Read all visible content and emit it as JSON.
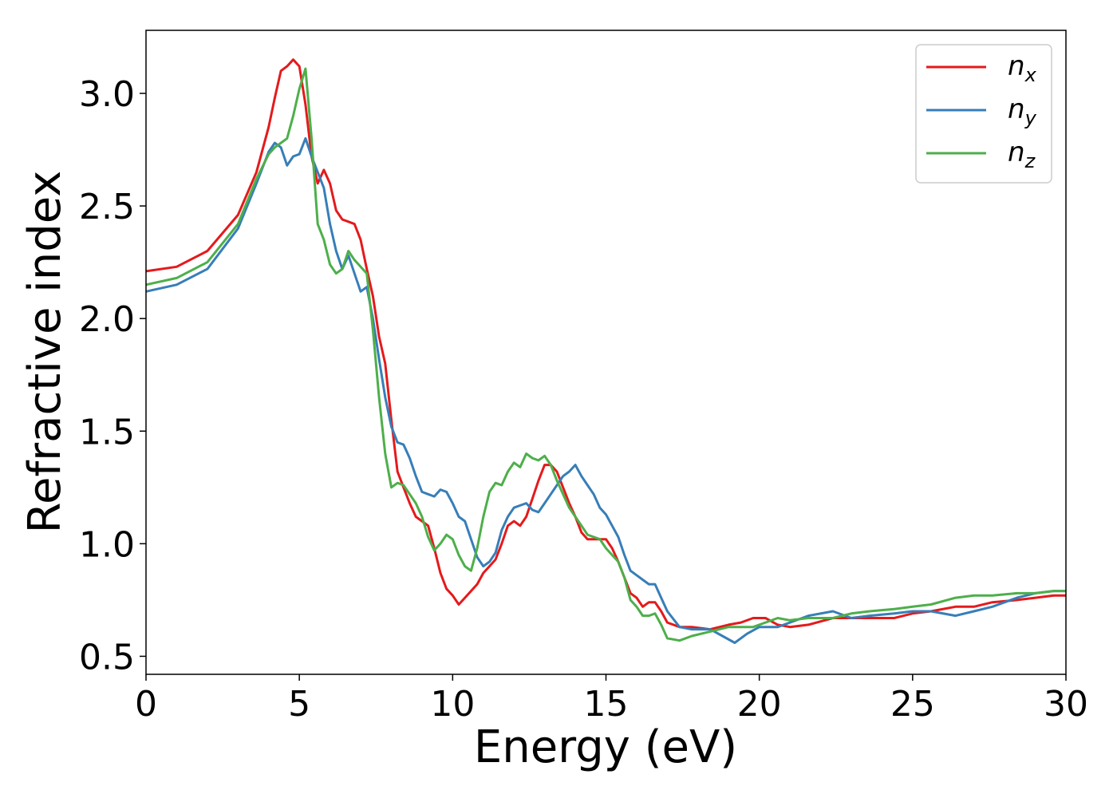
{
  "chart_data": {
    "type": "line",
    "title": "",
    "xlabel": "Energy (eV)",
    "ylabel": "Refractive index",
    "xlim": [
      0,
      30
    ],
    "ylim": [
      0.42,
      3.28
    ],
    "x_ticks": [
      0,
      5,
      10,
      15,
      20,
      25,
      30
    ],
    "y_ticks": [
      0.5,
      1.0,
      1.5,
      2.0,
      2.5,
      3.0
    ],
    "x_tick_labels": [
      "0",
      "5",
      "10",
      "15",
      "20",
      "25",
      "30"
    ],
    "y_tick_labels": [
      "0.5",
      "1.0",
      "1.5",
      "2.0",
      "2.5",
      "3.0"
    ],
    "grid": false,
    "legend_position": "top-right",
    "series": [
      {
        "name": "n",
        "subscript": "x",
        "color": "#e41a1c",
        "points": [
          [
            0,
            2.21
          ],
          [
            1,
            2.23
          ],
          [
            2,
            2.3
          ],
          [
            3,
            2.46
          ],
          [
            3.6,
            2.65
          ],
          [
            4,
            2.85
          ],
          [
            4.2,
            2.98
          ],
          [
            4.4,
            3.1
          ],
          [
            4.6,
            3.12
          ],
          [
            4.8,
            3.15
          ],
          [
            5,
            3.12
          ],
          [
            5.2,
            2.95
          ],
          [
            5.4,
            2.72
          ],
          [
            5.6,
            2.6
          ],
          [
            5.8,
            2.66
          ],
          [
            6,
            2.6
          ],
          [
            6.2,
            2.48
          ],
          [
            6.4,
            2.44
          ],
          [
            6.6,
            2.43
          ],
          [
            6.8,
            2.42
          ],
          [
            7,
            2.35
          ],
          [
            7.2,
            2.22
          ],
          [
            7.4,
            2.1
          ],
          [
            7.6,
            1.92
          ],
          [
            7.8,
            1.8
          ],
          [
            8,
            1.55
          ],
          [
            8.2,
            1.32
          ],
          [
            8.4,
            1.25
          ],
          [
            8.6,
            1.18
          ],
          [
            8.8,
            1.12
          ],
          [
            9,
            1.1
          ],
          [
            9.2,
            1.08
          ],
          [
            9.4,
            0.98
          ],
          [
            9.6,
            0.87
          ],
          [
            9.8,
            0.8
          ],
          [
            10,
            0.77
          ],
          [
            10.2,
            0.73
          ],
          [
            10.4,
            0.76
          ],
          [
            10.6,
            0.79
          ],
          [
            10.8,
            0.82
          ],
          [
            11,
            0.87
          ],
          [
            11.2,
            0.9
          ],
          [
            11.4,
            0.93
          ],
          [
            11.6,
            1.0
          ],
          [
            11.8,
            1.08
          ],
          [
            12,
            1.1
          ],
          [
            12.2,
            1.08
          ],
          [
            12.4,
            1.12
          ],
          [
            12.6,
            1.2
          ],
          [
            12.8,
            1.28
          ],
          [
            13,
            1.35
          ],
          [
            13.2,
            1.35
          ],
          [
            13.4,
            1.32
          ],
          [
            13.6,
            1.25
          ],
          [
            13.8,
            1.18
          ],
          [
            14,
            1.12
          ],
          [
            14.2,
            1.05
          ],
          [
            14.4,
            1.02
          ],
          [
            14.8,
            1.02
          ],
          [
            15,
            1.02
          ],
          [
            15.2,
            0.98
          ],
          [
            15.4,
            0.92
          ],
          [
            15.6,
            0.85
          ],
          [
            15.8,
            0.78
          ],
          [
            16,
            0.76
          ],
          [
            16.2,
            0.72
          ],
          [
            16.4,
            0.74
          ],
          [
            16.6,
            0.74
          ],
          [
            16.8,
            0.7
          ],
          [
            17,
            0.65
          ],
          [
            17.4,
            0.63
          ],
          [
            17.8,
            0.63
          ],
          [
            18.4,
            0.62
          ],
          [
            19,
            0.64
          ],
          [
            19.4,
            0.65
          ],
          [
            19.8,
            0.67
          ],
          [
            20.2,
            0.67
          ],
          [
            20.6,
            0.64
          ],
          [
            21,
            0.63
          ],
          [
            21.6,
            0.64
          ],
          [
            22.4,
            0.67
          ],
          [
            23,
            0.67
          ],
          [
            23.6,
            0.67
          ],
          [
            24.4,
            0.67
          ],
          [
            25,
            0.69
          ],
          [
            25.6,
            0.7
          ],
          [
            26.4,
            0.72
          ],
          [
            27,
            0.72
          ],
          [
            27.6,
            0.74
          ],
          [
            28.4,
            0.75
          ],
          [
            29,
            0.76
          ],
          [
            29.6,
            0.77
          ],
          [
            30,
            0.77
          ]
        ]
      },
      {
        "name": "n",
        "subscript": "y",
        "color": "#377eb8",
        "points": [
          [
            0,
            2.12
          ],
          [
            1,
            2.15
          ],
          [
            2,
            2.22
          ],
          [
            3,
            2.4
          ],
          [
            3.6,
            2.6
          ],
          [
            4,
            2.74
          ],
          [
            4.2,
            2.78
          ],
          [
            4.4,
            2.76
          ],
          [
            4.6,
            2.68
          ],
          [
            4.8,
            2.72
          ],
          [
            5,
            2.73
          ],
          [
            5.2,
            2.8
          ],
          [
            5.4,
            2.72
          ],
          [
            5.6,
            2.65
          ],
          [
            5.8,
            2.58
          ],
          [
            6,
            2.42
          ],
          [
            6.2,
            2.3
          ],
          [
            6.4,
            2.22
          ],
          [
            6.6,
            2.28
          ],
          [
            6.8,
            2.2
          ],
          [
            7,
            2.12
          ],
          [
            7.2,
            2.14
          ],
          [
            7.4,
            2.0
          ],
          [
            7.6,
            1.82
          ],
          [
            7.8,
            1.65
          ],
          [
            8,
            1.52
          ],
          [
            8.2,
            1.45
          ],
          [
            8.4,
            1.44
          ],
          [
            8.6,
            1.38
          ],
          [
            8.8,
            1.3
          ],
          [
            9,
            1.23
          ],
          [
            9.2,
            1.22
          ],
          [
            9.4,
            1.21
          ],
          [
            9.6,
            1.24
          ],
          [
            9.8,
            1.23
          ],
          [
            10,
            1.18
          ],
          [
            10.2,
            1.12
          ],
          [
            10.4,
            1.1
          ],
          [
            10.6,
            1.02
          ],
          [
            10.8,
            0.94
          ],
          [
            11,
            0.9
          ],
          [
            11.2,
            0.92
          ],
          [
            11.4,
            0.96
          ],
          [
            11.6,
            1.06
          ],
          [
            11.8,
            1.12
          ],
          [
            12,
            1.16
          ],
          [
            12.2,
            1.17
          ],
          [
            12.4,
            1.18
          ],
          [
            12.6,
            1.15
          ],
          [
            12.8,
            1.14
          ],
          [
            13,
            1.18
          ],
          [
            13.2,
            1.22
          ],
          [
            13.4,
            1.26
          ],
          [
            13.6,
            1.3
          ],
          [
            13.8,
            1.32
          ],
          [
            14,
            1.35
          ],
          [
            14.2,
            1.3
          ],
          [
            14.4,
            1.26
          ],
          [
            14.6,
            1.22
          ],
          [
            14.8,
            1.16
          ],
          [
            15,
            1.13
          ],
          [
            15.2,
            1.08
          ],
          [
            15.4,
            1.03
          ],
          [
            15.6,
            0.95
          ],
          [
            15.8,
            0.88
          ],
          [
            16,
            0.86
          ],
          [
            16.2,
            0.84
          ],
          [
            16.4,
            0.82
          ],
          [
            16.6,
            0.82
          ],
          [
            16.8,
            0.76
          ],
          [
            17,
            0.7
          ],
          [
            17.4,
            0.63
          ],
          [
            17.8,
            0.62
          ],
          [
            18.4,
            0.62
          ],
          [
            18.8,
            0.59
          ],
          [
            19.2,
            0.56
          ],
          [
            19.6,
            0.6
          ],
          [
            20,
            0.63
          ],
          [
            20.6,
            0.63
          ],
          [
            21,
            0.65
          ],
          [
            21.6,
            0.68
          ],
          [
            22.4,
            0.7
          ],
          [
            23,
            0.67
          ],
          [
            23.6,
            0.68
          ],
          [
            24.4,
            0.69
          ],
          [
            25,
            0.7
          ],
          [
            25.6,
            0.7
          ],
          [
            26.4,
            0.68
          ],
          [
            27,
            0.7
          ],
          [
            27.6,
            0.72
          ],
          [
            28.4,
            0.76
          ],
          [
            29,
            0.78
          ],
          [
            29.6,
            0.79
          ],
          [
            30,
            0.79
          ]
        ]
      },
      {
        "name": "n",
        "subscript": "z",
        "color": "#4daf4a",
        "points": [
          [
            0,
            2.15
          ],
          [
            1,
            2.18
          ],
          [
            2,
            2.25
          ],
          [
            3,
            2.42
          ],
          [
            3.6,
            2.62
          ],
          [
            4,
            2.73
          ],
          [
            4.2,
            2.76
          ],
          [
            4.4,
            2.78
          ],
          [
            4.6,
            2.8
          ],
          [
            4.8,
            2.9
          ],
          [
            5,
            3.02
          ],
          [
            5.2,
            3.11
          ],
          [
            5.4,
            2.8
          ],
          [
            5.6,
            2.42
          ],
          [
            5.8,
            2.35
          ],
          [
            6,
            2.24
          ],
          [
            6.2,
            2.2
          ],
          [
            6.4,
            2.22
          ],
          [
            6.6,
            2.3
          ],
          [
            6.8,
            2.26
          ],
          [
            7,
            2.23
          ],
          [
            7.2,
            2.2
          ],
          [
            7.4,
            1.95
          ],
          [
            7.6,
            1.65
          ],
          [
            7.8,
            1.4
          ],
          [
            8,
            1.25
          ],
          [
            8.2,
            1.27
          ],
          [
            8.4,
            1.26
          ],
          [
            8.6,
            1.22
          ],
          [
            8.8,
            1.18
          ],
          [
            9,
            1.12
          ],
          [
            9.2,
            1.03
          ],
          [
            9.4,
            0.97
          ],
          [
            9.6,
            1.0
          ],
          [
            9.8,
            1.04
          ],
          [
            10,
            1.02
          ],
          [
            10.2,
            0.95
          ],
          [
            10.4,
            0.9
          ],
          [
            10.6,
            0.88
          ],
          [
            10.8,
            0.98
          ],
          [
            11,
            1.12
          ],
          [
            11.2,
            1.23
          ],
          [
            11.4,
            1.27
          ],
          [
            11.6,
            1.26
          ],
          [
            11.8,
            1.32
          ],
          [
            12,
            1.36
          ],
          [
            12.2,
            1.34
          ],
          [
            12.4,
            1.4
          ],
          [
            12.6,
            1.38
          ],
          [
            12.8,
            1.37
          ],
          [
            13,
            1.39
          ],
          [
            13.2,
            1.35
          ],
          [
            13.4,
            1.28
          ],
          [
            13.6,
            1.22
          ],
          [
            13.8,
            1.16
          ],
          [
            14,
            1.12
          ],
          [
            14.2,
            1.08
          ],
          [
            14.4,
            1.04
          ],
          [
            14.8,
            1.02
          ],
          [
            15,
            0.98
          ],
          [
            15.2,
            0.95
          ],
          [
            15.4,
            0.92
          ],
          [
            15.6,
            0.85
          ],
          [
            15.8,
            0.75
          ],
          [
            16,
            0.72
          ],
          [
            16.2,
            0.68
          ],
          [
            16.4,
            0.68
          ],
          [
            16.6,
            0.69
          ],
          [
            16.8,
            0.64
          ],
          [
            17,
            0.58
          ],
          [
            17.4,
            0.57
          ],
          [
            17.8,
            0.59
          ],
          [
            18.4,
            0.61
          ],
          [
            19,
            0.63
          ],
          [
            19.4,
            0.63
          ],
          [
            19.8,
            0.63
          ],
          [
            20.2,
            0.65
          ],
          [
            20.6,
            0.67
          ],
          [
            21,
            0.66
          ],
          [
            21.6,
            0.67
          ],
          [
            22.4,
            0.67
          ],
          [
            23,
            0.69
          ],
          [
            23.6,
            0.7
          ],
          [
            24.4,
            0.71
          ],
          [
            25,
            0.72
          ],
          [
            25.6,
            0.73
          ],
          [
            26.4,
            0.76
          ],
          [
            27,
            0.77
          ],
          [
            27.6,
            0.77
          ],
          [
            28.4,
            0.78
          ],
          [
            29,
            0.78
          ],
          [
            29.6,
            0.79
          ],
          [
            30,
            0.79
          ]
        ]
      }
    ]
  }
}
